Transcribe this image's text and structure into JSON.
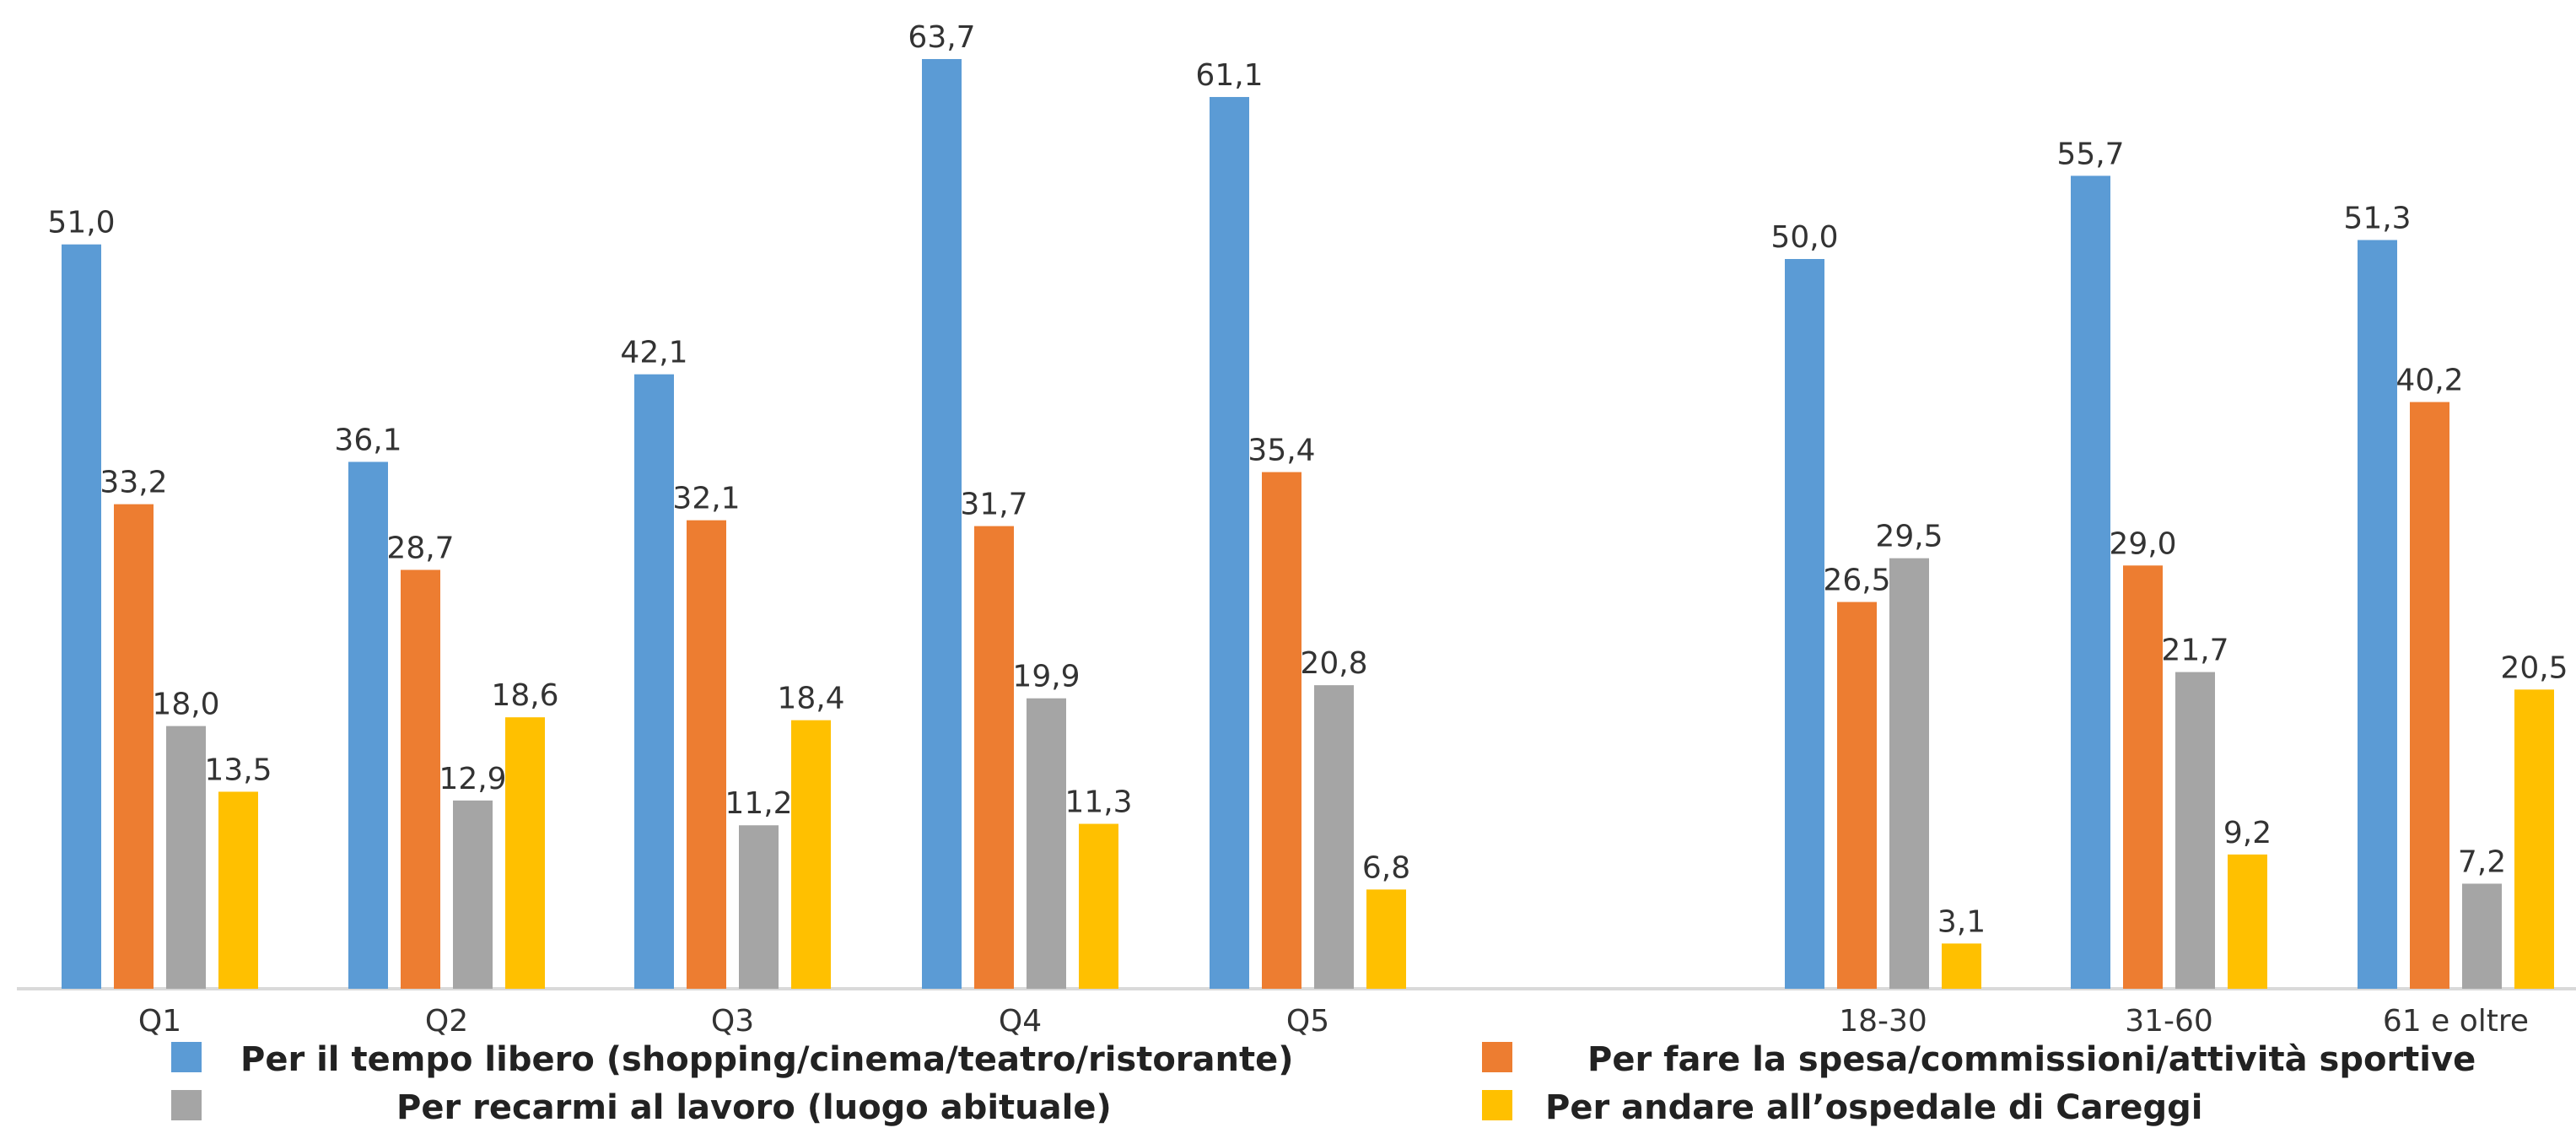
{
  "chart_data": {
    "type": "bar",
    "title": "",
    "xlabel": "",
    "ylabel": "",
    "ylim": [
      0,
      65
    ],
    "grid": false,
    "legend_position": "bottom",
    "categories": [
      "Q1",
      "Q2",
      "Q3",
      "Q4",
      "Q5",
      "18-30",
      "31-60",
      "61 e oltre"
    ],
    "series": [
      {
        "name": "Per il tempo libero (shopping/cinema/teatro/ristorante)",
        "color": "#5B9BD5",
        "values": [
          51.0,
          36.1,
          42.1,
          63.7,
          61.1,
          50.0,
          55.7,
          51.3
        ],
        "labels": [
          "51,0",
          "36,1",
          "42,1",
          "63,7",
          "61,1",
          "50,0",
          "55,7",
          "51,3"
        ]
      },
      {
        "name": "Per fare la spesa/commissioni/attività sportive",
        "color": "#ED7D31",
        "values": [
          33.2,
          28.7,
          32.1,
          31.7,
          35.4,
          26.5,
          29.0,
          40.2
        ],
        "labels": [
          "33,2",
          "28,7",
          "32,1",
          "31,7",
          "35,4",
          "26,5",
          "29,0",
          "40,2"
        ]
      },
      {
        "name": "Per recarmi al lavoro (luogo abituale)",
        "color": "#A5A5A5",
        "values": [
          18.0,
          12.9,
          11.2,
          19.9,
          20.8,
          29.5,
          21.7,
          7.2
        ],
        "labels": [
          "18,0",
          "12,9",
          "11,2",
          "19,9",
          "20,8",
          "29,5",
          "21,7",
          "7,2"
        ]
      },
      {
        "name": "Per andare all’ospedale di Careggi",
        "color": "#FFC000",
        "values": [
          13.5,
          18.6,
          18.4,
          11.3,
          6.8,
          3.1,
          9.2,
          20.5
        ],
        "labels": [
          "13,5",
          "18,6",
          "18,4",
          "11,3",
          "6,8",
          "3,1",
          "9,2",
          "20,5"
        ]
      }
    ],
    "axis_color": "#D9D9D9"
  }
}
